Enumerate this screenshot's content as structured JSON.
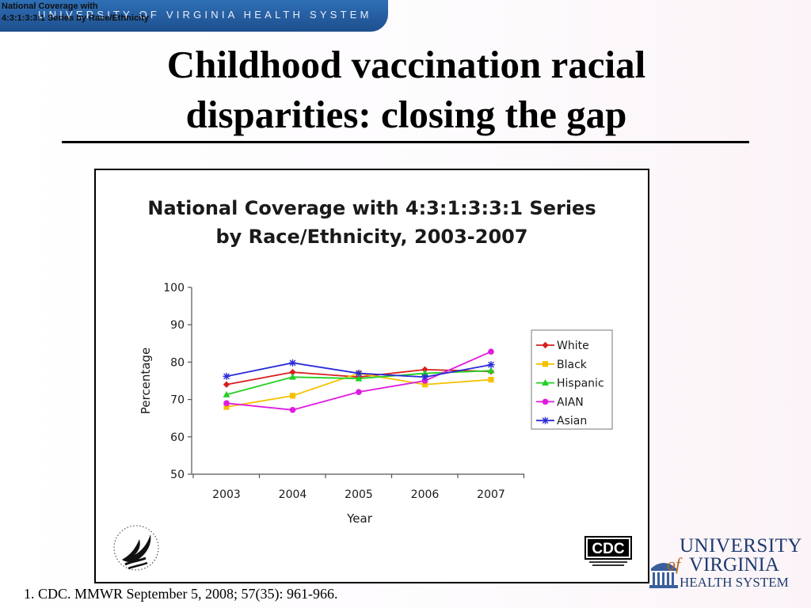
{
  "banner": {
    "org_name": "UNIVERSITY OF VIRGINIA HEALTH SYSTEM"
  },
  "overlay_caption": "National Coverage with\n4:3:1:3:3:1 Series by Race/Ethnicity",
  "slide": {
    "title": "Childhood vaccination racial\ndisparities: closing the gap",
    "footnote": "1.  CDC. MMWR September 5, 2008; 57(35): 961-966."
  },
  "logos": {
    "cdc_text": "CDC",
    "uva_line1": "UNIVERSITY",
    "uva_of": "of",
    "uva_line2": "VIRGINIA",
    "uva_line3": "HEALTH SYSTEM"
  },
  "colors": {
    "banner_blue": "#1d4f8e",
    "white": "#d81e1e",
    "black": "#f5c000",
    "hispanic": "#22d122",
    "aian": "#e01be0",
    "asian": "#2b2bd6"
  },
  "chart_data": {
    "type": "line",
    "title": "National Coverage with 4:3:1:3:3:1 Series\nby Race/Ethnicity, 2003-2007",
    "xlabel": "Year",
    "ylabel": "Percentage",
    "x": [
      "2003",
      "2004",
      "2005",
      "2006",
      "2007"
    ],
    "ylim": [
      50,
      100
    ],
    "yticks": [
      "100",
      "90",
      "80",
      "70",
      "60",
      "50"
    ],
    "grid": false,
    "legend_position": "right",
    "series": [
      {
        "name": "White",
        "marker": "diamond",
        "color": "#d81e1e",
        "values": [
          74,
          77.3,
          76,
          78,
          77.5
        ]
      },
      {
        "name": "Black",
        "marker": "square",
        "color": "#f5c000",
        "values": [
          68,
          71,
          77,
          74,
          75.3
        ]
      },
      {
        "name": "Hispanic",
        "marker": "triangle",
        "color": "#22d122",
        "values": [
          71.3,
          76,
          75.6,
          77,
          77.7
        ]
      },
      {
        "name": "AIAN",
        "marker": "circle",
        "color": "#e01be0",
        "values": [
          69,
          67.2,
          72,
          75,
          82.8
        ]
      },
      {
        "name": "Asian",
        "marker": "star",
        "color": "#2b2bd6",
        "values": [
          76.2,
          79.8,
          77,
          76,
          79.3
        ]
      }
    ]
  }
}
